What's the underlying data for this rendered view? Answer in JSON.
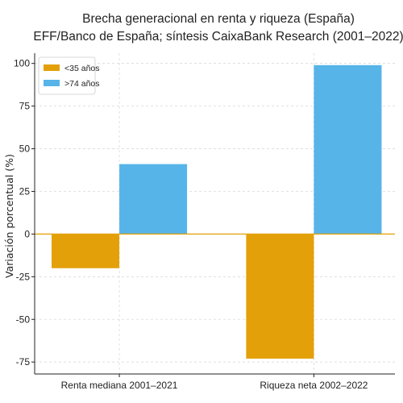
{
  "chart_data": {
    "type": "bar",
    "title": "Brecha generacional en renta y riqueza (España)",
    "subtitle": "EFF/Banco de España; síntesis CaixaBank Research (2001–2022)",
    "xlabel": "",
    "ylabel": "Variación porcentual (%)",
    "categories": [
      "Renta mediana 2001–2021",
      "Riqueza neta 2002–2022"
    ],
    "series": [
      {
        "name": "<35 años",
        "color": "#E3A008",
        "values": [
          -20,
          -73
        ]
      },
      {
        "name": ">74 años",
        "color": "#56B4E9",
        "values": [
          41,
          99
        ]
      }
    ],
    "ylim": [
      -82,
      106
    ],
    "yticks": [
      -75,
      -50,
      -25,
      0,
      25,
      50,
      75,
      100
    ],
    "grid": true,
    "legend_position": "top-left",
    "zero_line_color": "#E3A008"
  }
}
